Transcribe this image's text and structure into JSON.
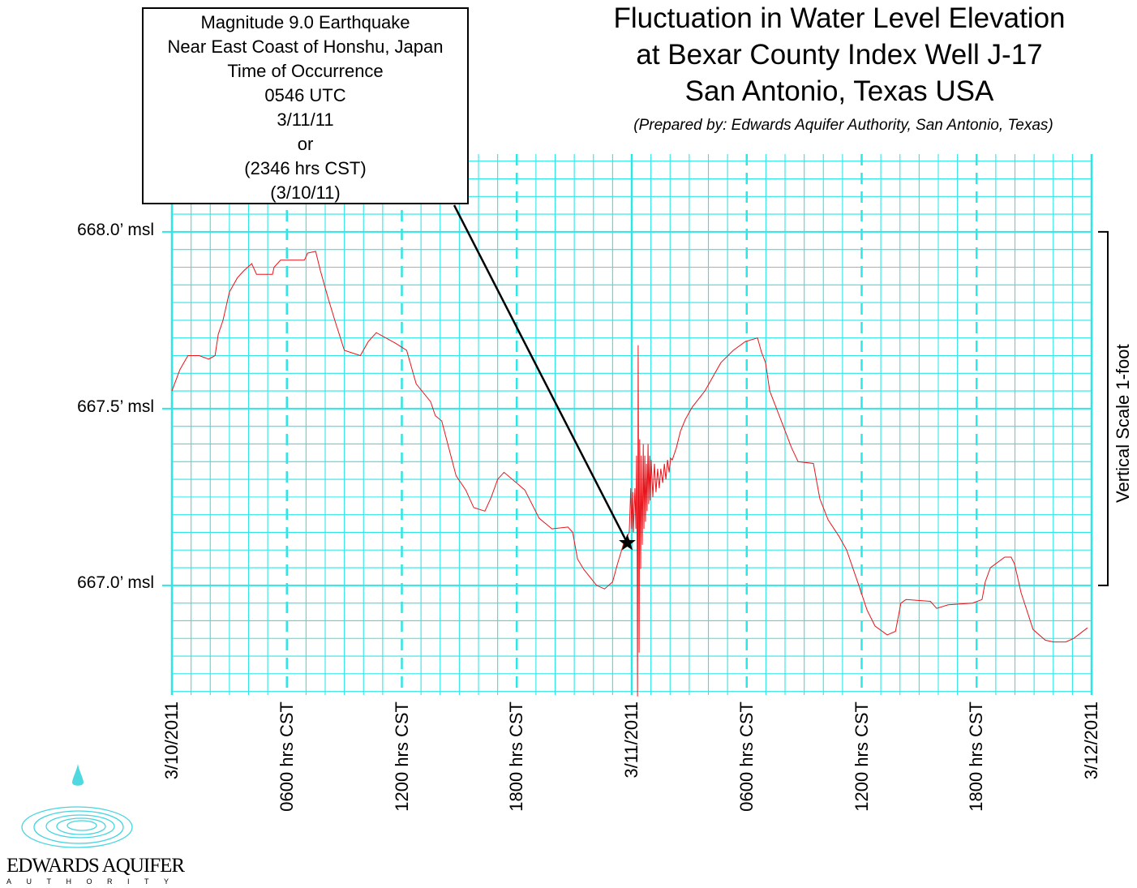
{
  "chart_data": {
    "type": "line",
    "title_lines": [
      "Fluctuation in Water Level Elevation",
      "at Bexar County Index Well J-17",
      "San Antonio, Texas USA"
    ],
    "subtitle": "(Prepared by: Edwards Aquifer Authority, San Antonio, Texas)",
    "xlim": [
      "2011-03-10 00:00",
      "2011-03-12 00:00"
    ],
    "ylim": [
      666.69,
      668.22
    ],
    "y_ticks": [
      {
        "value": 668.0,
        "label": "668.0’ msl"
      },
      {
        "value": 667.5,
        "label": "667.5’ msl"
      },
      {
        "value": 667.0,
        "label": "667.0’ msl"
      }
    ],
    "x_ticks": [
      {
        "time": "2011-03-10 00:00",
        "label": "3/10/2011"
      },
      {
        "time": "2011-03-10 06:00",
        "label": "0600 hrs CST"
      },
      {
        "time": "2011-03-10 12:00",
        "label": "1200 hrs CST"
      },
      {
        "time": "2011-03-10 18:00",
        "label": "1800 hrs CST"
      },
      {
        "time": "2011-03-11 00:00",
        "label": "3/11/2011"
      },
      {
        "time": "2011-03-11 06:00",
        "label": "0600 hrs CST"
      },
      {
        "time": "2011-03-11 12:00",
        "label": "1200 hrs CST"
      },
      {
        "time": "2011-03-11 18:00",
        "label": "1800 hrs CST"
      },
      {
        "time": "2011-03-12 00:00",
        "label": "3/12/2011"
      }
    ],
    "grid": {
      "minor_x_hours": 1,
      "dashed_x_hours": 6,
      "minor_y_ft": 0.05,
      "major_y_ft": 0.5,
      "color": "#2ee6e6"
    },
    "line_color": "#e8141b",
    "series": [
      {
        "points": [
          [
            "2011-03-10 00:00",
            667.55
          ],
          [
            "2011-03-10 00:25",
            667.61
          ],
          [
            "2011-03-10 00:50",
            667.65
          ],
          [
            "2011-03-10 01:25",
            667.65
          ],
          [
            "2011-03-10 01:55",
            667.64
          ],
          [
            "2011-03-10 02:15",
            667.65
          ],
          [
            "2011-03-10 02:25",
            667.71
          ],
          [
            "2011-03-10 02:40",
            667.75
          ],
          [
            "2011-03-10 03:00",
            667.83
          ],
          [
            "2011-03-10 03:25",
            667.87
          ],
          [
            "2011-03-10 03:45",
            667.89
          ],
          [
            "2011-03-10 04:10",
            667.91
          ],
          [
            "2011-03-10 04:25",
            667.88
          ],
          [
            "2011-03-10 05:15",
            667.88
          ],
          [
            "2011-03-10 05:20",
            667.9
          ],
          [
            "2011-03-10 05:40",
            667.92
          ],
          [
            "2011-03-10 06:30",
            667.92
          ],
          [
            "2011-03-10 06:55",
            667.92
          ],
          [
            "2011-03-10 07:05",
            667.94
          ],
          [
            "2011-03-10 07:30",
            667.945
          ],
          [
            "2011-03-10 07:45",
            667.89
          ],
          [
            "2011-03-10 08:10",
            667.81
          ],
          [
            "2011-03-10 08:30",
            667.75
          ],
          [
            "2011-03-10 09:00",
            667.665
          ],
          [
            "2011-03-10 09:50",
            667.65
          ],
          [
            "2011-03-10 10:15",
            667.69
          ],
          [
            "2011-03-10 10:40",
            667.715
          ],
          [
            "2011-03-10 11:40",
            667.685
          ],
          [
            "2011-03-10 12:15",
            667.665
          ],
          [
            "2011-03-10 12:45",
            667.57
          ],
          [
            "2011-03-10 13:30",
            667.52
          ],
          [
            "2011-03-10 13:45",
            667.48
          ],
          [
            "2011-03-10 14:05",
            667.465
          ],
          [
            "2011-03-10 14:50",
            667.31
          ],
          [
            "2011-03-10 15:20",
            667.27
          ],
          [
            "2011-03-10 15:45",
            667.22
          ],
          [
            "2011-03-10 16:20",
            667.21
          ],
          [
            "2011-03-10 16:40",
            667.25
          ],
          [
            "2011-03-10 17:00",
            667.3
          ],
          [
            "2011-03-10 17:20",
            667.32
          ],
          [
            "2011-03-10 18:25",
            667.27
          ],
          [
            "2011-03-10 19:10",
            667.19
          ],
          [
            "2011-03-10 19:50",
            667.16
          ],
          [
            "2011-03-10 20:40",
            667.165
          ],
          [
            "2011-03-10 20:55",
            667.15
          ],
          [
            "2011-03-10 21:10",
            667.075
          ],
          [
            "2011-03-10 21:30",
            667.045
          ],
          [
            "2011-03-10 22:10",
            667.0
          ],
          [
            "2011-03-10 22:35",
            666.99
          ],
          [
            "2011-03-10 23:00",
            667.01
          ],
          [
            "2011-03-10 23:15",
            667.06
          ],
          [
            "2011-03-10 23:35",
            667.12
          ],
          [
            "2011-03-10 23:52",
            667.15
          ],
          [
            "2011-03-10 23:57",
            667.275
          ],
          [
            "2011-03-11 00:00",
            667.16
          ],
          [
            "2011-03-11 00:03",
            667.264
          ],
          [
            "2011-03-11 00:05",
            667.15
          ],
          [
            "2011-03-11 00:10",
            667.275
          ],
          [
            "2011-03-11 00:13",
            667.16
          ],
          [
            "2011-03-11 00:15",
            667.367
          ],
          [
            "2011-03-11 00:17",
            667.07
          ],
          [
            "2011-03-11 00:18",
            666.686
          ],
          [
            "2011-03-11 00:20",
            667.679
          ],
          [
            "2011-03-11 00:23",
            666.81
          ],
          [
            "2011-03-11 00:25",
            667.413
          ],
          [
            "2011-03-11 00:28",
            667.046
          ],
          [
            "2011-03-11 00:30",
            667.367
          ],
          [
            "2011-03-11 00:33",
            667.115
          ],
          [
            "2011-03-11 00:36",
            667.4
          ],
          [
            "2011-03-11 00:38",
            667.16
          ],
          [
            "2011-03-11 00:41",
            667.367
          ],
          [
            "2011-03-11 00:43",
            667.18
          ],
          [
            "2011-03-11 00:46",
            667.344
          ],
          [
            "2011-03-11 00:48",
            667.21
          ],
          [
            "2011-03-11 00:51",
            667.4
          ],
          [
            "2011-03-11 00:53",
            667.23
          ],
          [
            "2011-03-11 00:56",
            667.367
          ],
          [
            "2011-03-11 00:58",
            667.24
          ],
          [
            "2011-03-11 01:01",
            667.355
          ],
          [
            "2011-03-11 01:06",
            667.25
          ],
          [
            "2011-03-11 01:11",
            667.344
          ],
          [
            "2011-03-11 01:16",
            667.264
          ],
          [
            "2011-03-11 01:21",
            667.33
          ],
          [
            "2011-03-11 01:26",
            667.275
          ],
          [
            "2011-03-11 01:31",
            667.33
          ],
          [
            "2011-03-11 01:37",
            667.29
          ],
          [
            "2011-03-11 01:42",
            667.344
          ],
          [
            "2011-03-11 01:47",
            667.3
          ],
          [
            "2011-03-11 01:52",
            667.355
          ],
          [
            "2011-03-11 01:57",
            667.32
          ],
          [
            "2011-03-11 02:02",
            667.36
          ],
          [
            "2011-03-11 02:07",
            667.355
          ],
          [
            "2011-03-11 02:20",
            667.39
          ],
          [
            "2011-03-11 02:32",
            667.435
          ],
          [
            "2011-03-11 02:48",
            667.47
          ],
          [
            "2011-03-11 03:10",
            667.505
          ],
          [
            "2011-03-11 03:49",
            667.55
          ],
          [
            "2011-03-11 04:14",
            667.59
          ],
          [
            "2011-03-11 04:39",
            667.63
          ],
          [
            "2011-03-11 05:18",
            667.665
          ],
          [
            "2011-03-11 05:56",
            667.69
          ],
          [
            "2011-03-11 06:34",
            667.7
          ],
          [
            "2011-03-11 06:46",
            667.66
          ],
          [
            "2011-03-11 06:59",
            667.63
          ],
          [
            "2011-03-11 07:12",
            667.55
          ],
          [
            "2011-03-11 07:42",
            667.48
          ],
          [
            "2011-03-11 08:20",
            667.39
          ],
          [
            "2011-03-11 08:41",
            667.35
          ],
          [
            "2011-03-11 09:29",
            667.345
          ],
          [
            "2011-03-11 09:49",
            667.245
          ],
          [
            "2011-03-11 10:15",
            667.185
          ],
          [
            "2011-03-11 10:48",
            667.14
          ],
          [
            "2011-03-11 11:13",
            667.1
          ],
          [
            "2011-03-11 11:51",
            667.0
          ],
          [
            "2011-03-11 12:17",
            666.93
          ],
          [
            "2011-03-11 12:42",
            666.885
          ],
          [
            "2011-03-11 13:20",
            666.86
          ],
          [
            "2011-03-11 13:46",
            666.87
          ],
          [
            "2011-03-11 14:03",
            666.95
          ],
          [
            "2011-03-11 14:19",
            666.96
          ],
          [
            "2011-03-11 15:35",
            666.955
          ],
          [
            "2011-03-11 15:55",
            666.935
          ],
          [
            "2011-03-11 16:31",
            666.945
          ],
          [
            "2011-03-11 17:47",
            666.95
          ],
          [
            "2011-03-11 18:17",
            666.96
          ],
          [
            "2011-03-11 18:27",
            667.01
          ],
          [
            "2011-03-11 18:43",
            667.05
          ],
          [
            "2011-03-11 19:28",
            667.08
          ],
          [
            "2011-03-11 19:48",
            667.08
          ],
          [
            "2011-03-11 19:59",
            667.06
          ],
          [
            "2011-03-11 20:19",
            666.98
          ],
          [
            "2011-03-11 20:57",
            666.875
          ],
          [
            "2011-03-11 21:35",
            666.845
          ],
          [
            "2011-03-11 22:01",
            666.84
          ],
          [
            "2011-03-11 22:39",
            666.84
          ],
          [
            "2011-03-11 23:04",
            666.85
          ],
          [
            "2011-03-11 23:47",
            666.88
          ]
        ]
      }
    ],
    "event_marker": {
      "time": "2011-03-10 23:46",
      "value": 667.12,
      "symbol": "star"
    },
    "annotation": {
      "lines": [
        "Magnitude 9.0 Earthquake",
        "Near East Coast of Honshu, Japan",
        "Time of Occurrence",
        "0546 UTC",
        "3/11/11",
        "or",
        "(2346 hrs CST)",
        "(3/10/11)"
      ]
    },
    "scale_bar": {
      "label": "Vertical Scale 1-foot",
      "from": 667.0,
      "to": 668.0
    }
  },
  "logo": {
    "name": "EDWARDS AQUIFER",
    "sub": "AUTHORITY"
  }
}
